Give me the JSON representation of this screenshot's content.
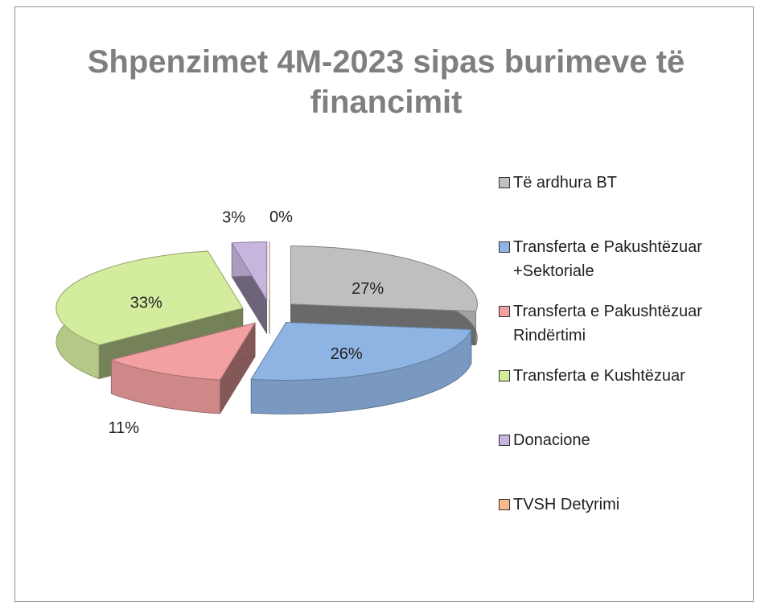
{
  "chart_data": {
    "type": "pie",
    "title": "Shpenzimet 4M-2023 sipas burimeve të financimit",
    "categories": [
      "Të ardhura BT",
      "Transferta e Pakushtëzuar +Sektoriale",
      "Transferta e Pakushtëzuar Rindërtimi",
      "Transferta e Kushtëzuar",
      "Donacione",
      "TVSH Detyrimi"
    ],
    "values": [
      27,
      26,
      11,
      33,
      3,
      0
    ],
    "value_labels": [
      "27%",
      "26%",
      "11%",
      "33%",
      "3%",
      "0%"
    ],
    "colors": [
      "#bfbfbf",
      "#8eb4e3",
      "#f2a0a0",
      "#d4ec9e",
      "#c6b6de",
      "#f9b98c"
    ],
    "legend": "right"
  }
}
